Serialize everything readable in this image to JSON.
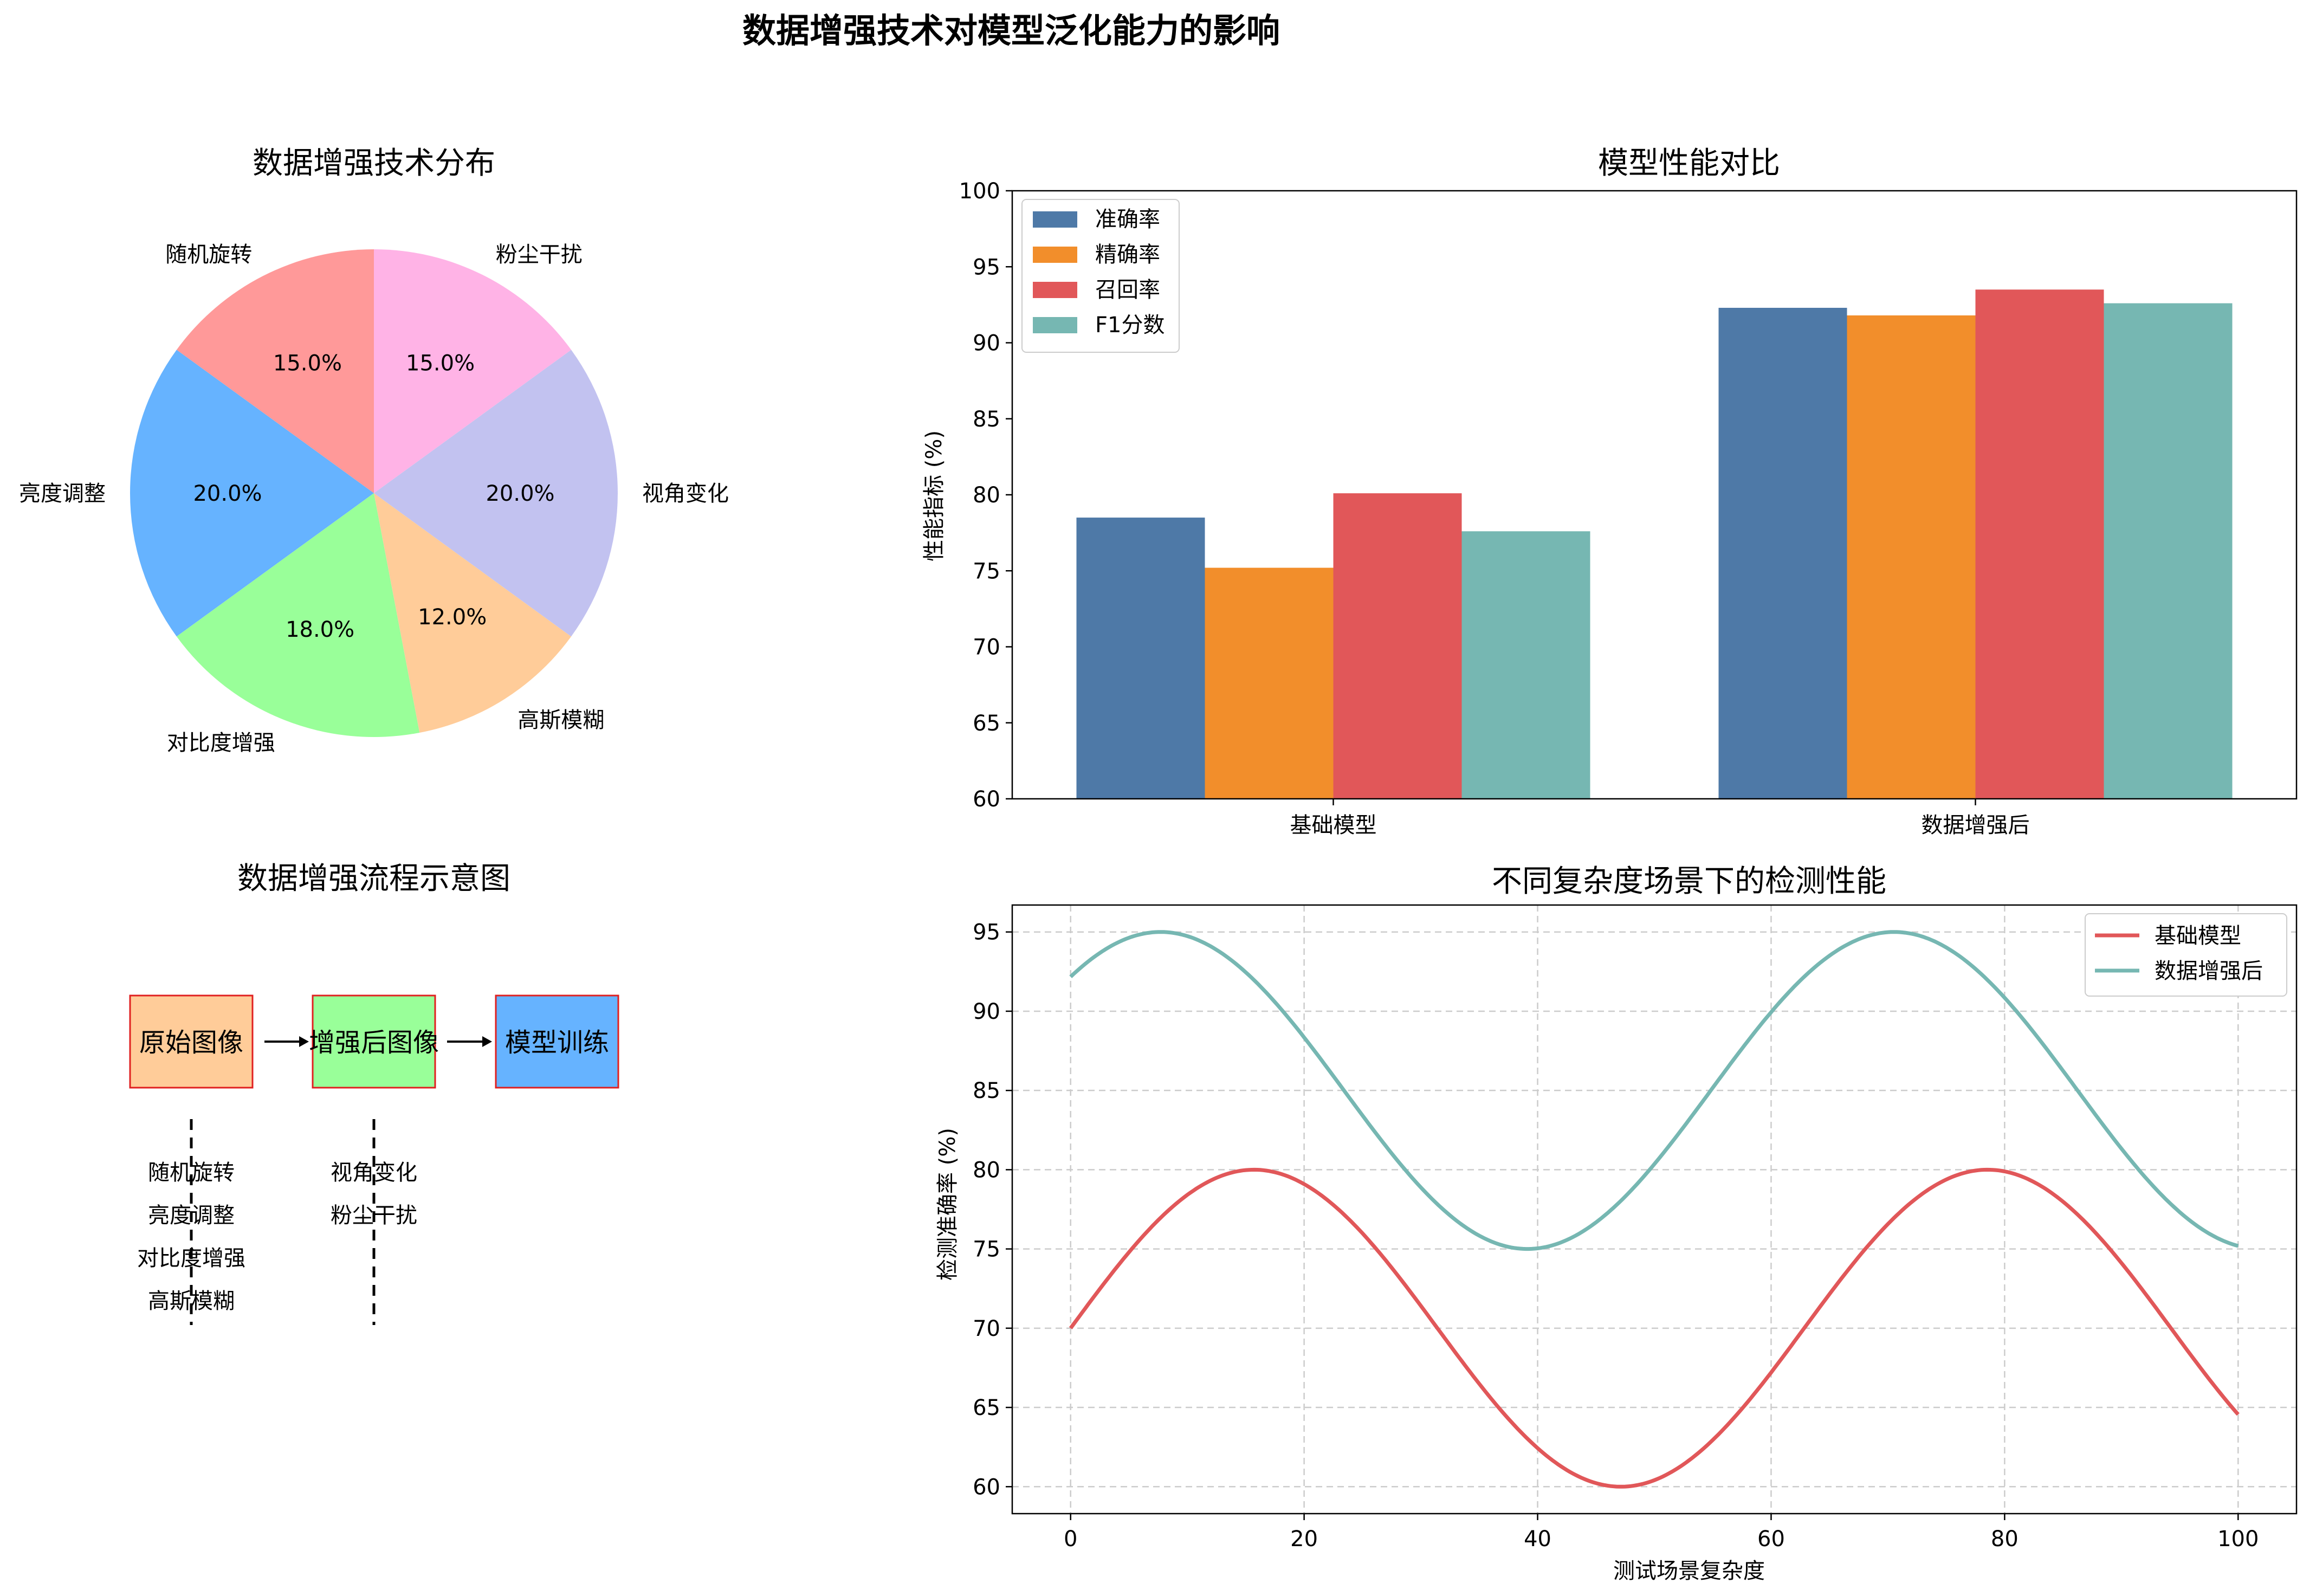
{
  "suptitle": "数据增强技术对模型泛化能力的影响",
  "chart_data": [
    {
      "type": "pie",
      "title": "数据增强技术分布",
      "labels": [
        "随机旋转",
        "亮度调整",
        "对比度增强",
        "高斯模糊",
        "视角变化",
        "粉尘干扰"
      ],
      "values": [
        15.0,
        20.0,
        18.0,
        12.0,
        20.0,
        15.0
      ],
      "autopct": [
        "15.0%",
        "20.0%",
        "18.0%",
        "12.0%",
        "20.0%",
        "15.0%"
      ],
      "colors": [
        "#ff9999",
        "#66b3ff",
        "#99ff99",
        "#ffcc99",
        "#c2c2f0",
        "#ffb3e6"
      ]
    },
    {
      "type": "bar",
      "title": "模型性能对比",
      "categories": [
        "基础模型",
        "数据增强后"
      ],
      "ylabel": "性能指标 (%)",
      "ylim": [
        60,
        100
      ],
      "yticks": [
        60,
        65,
        70,
        75,
        80,
        85,
        90,
        95,
        100
      ],
      "legend_position": "top-left",
      "series": [
        {
          "name": "准确率",
          "color": "#4e79a7",
          "values": [
            78.5,
            92.3
          ]
        },
        {
          "name": "精确率",
          "color": "#f28e2b",
          "values": [
            75.2,
            91.8
          ]
        },
        {
          "name": "召回率",
          "color": "#e15759",
          "values": [
            80.1,
            93.5
          ]
        },
        {
          "name": "F1分数",
          "color": "#76b7b2",
          "values": [
            77.6,
            92.6
          ]
        }
      ]
    },
    {
      "type": "diagram",
      "title": "数据增强流程示意图",
      "boxes": [
        {
          "label": "原始图像",
          "color": "#ffcc99"
        },
        {
          "label": "增强后图像",
          "color": "#99ff99"
        },
        {
          "label": "模型训练",
          "color": "#66b3ff"
        }
      ],
      "left_list": [
        "随机旋转",
        "亮度调整",
        "对比度增强",
        "高斯模糊"
      ],
      "right_list": [
        "视角变化",
        "粉尘干扰"
      ]
    },
    {
      "type": "line",
      "title": "不同复杂度场景下的检测性能",
      "xlabel": "测试场景复杂度",
      "ylabel": "检测准确率 (%)",
      "xlim": [
        -5,
        105
      ],
      "ylim": [
        58.3,
        96.7
      ],
      "xticks": [
        0,
        20,
        40,
        60,
        80,
        100
      ],
      "yticks": [
        60,
        65,
        70,
        75,
        80,
        85,
        90,
        95
      ],
      "grid": true,
      "legend_position": "top-right",
      "series": [
        {
          "name": "基础模型",
          "color": "#e15759",
          "formula": "70 + 10*sin(x/10)",
          "x_range": [
            0,
            100
          ]
        },
        {
          "name": "数据增强后",
          "color": "#76b7b2",
          "formula": "85 + 10*sin(x/10 + 0.8)",
          "x_range": [
            0,
            100
          ]
        }
      ]
    }
  ]
}
